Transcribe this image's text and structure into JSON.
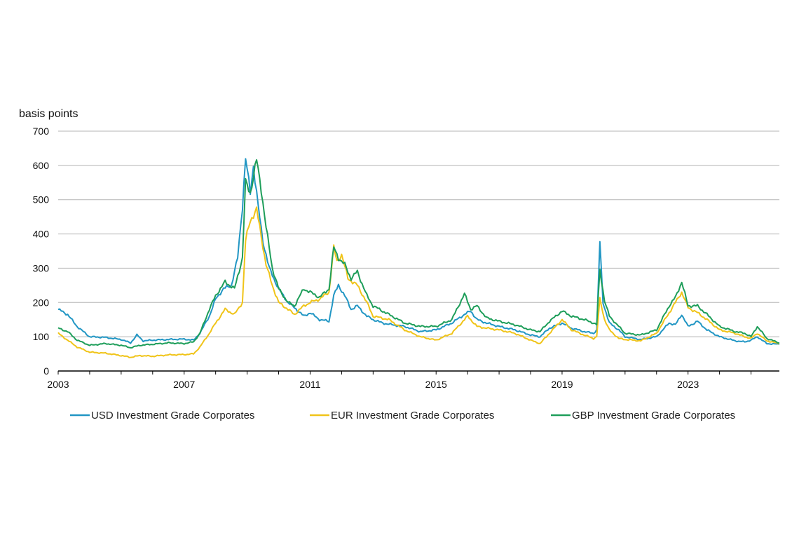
{
  "chart_data": {
    "type": "line",
    "title": "",
    "ylabel": "basis points",
    "xlabel": "",
    "ylim": [
      0,
      700
    ],
    "xlim": [
      2003,
      2025.9
    ],
    "y_ticks": [
      0,
      100,
      200,
      300,
      400,
      500,
      600,
      700
    ],
    "x_ticks": [
      2003,
      2007,
      2011,
      2015,
      2019,
      2023
    ],
    "grid": "horizontal",
    "legend_position": "bottom",
    "series": [
      {
        "name": "USD Investment Grade Corporates",
        "color": "#2196c4",
        "points": [
          [
            2003.0,
            180
          ],
          [
            2003.3,
            165
          ],
          [
            2003.6,
            130
          ],
          [
            2004.0,
            100
          ],
          [
            2004.5,
            98
          ],
          [
            2005.0,
            92
          ],
          [
            2005.3,
            82
          ],
          [
            2005.5,
            105
          ],
          [
            2005.7,
            88
          ],
          [
            2006.0,
            90
          ],
          [
            2006.5,
            92
          ],
          [
            2007.0,
            93
          ],
          [
            2007.3,
            90
          ],
          [
            2007.5,
            110
          ],
          [
            2007.8,
            160
          ],
          [
            2008.0,
            210
          ],
          [
            2008.25,
            240
          ],
          [
            2008.5,
            250
          ],
          [
            2008.7,
            330
          ],
          [
            2008.85,
            480
          ],
          [
            2008.95,
            620
          ],
          [
            2009.1,
            520
          ],
          [
            2009.2,
            600
          ],
          [
            2009.35,
            480
          ],
          [
            2009.5,
            380
          ],
          [
            2009.7,
            300
          ],
          [
            2010.0,
            240
          ],
          [
            2010.3,
            200
          ],
          [
            2010.5,
            185
          ],
          [
            2010.8,
            160
          ],
          [
            2011.0,
            170
          ],
          [
            2011.3,
            150
          ],
          [
            2011.6,
            145
          ],
          [
            2011.75,
            220
          ],
          [
            2011.9,
            250
          ],
          [
            2012.1,
            220
          ],
          [
            2012.3,
            180
          ],
          [
            2012.5,
            190
          ],
          [
            2012.8,
            160
          ],
          [
            2013.0,
            150
          ],
          [
            2013.3,
            140
          ],
          [
            2013.6,
            135
          ],
          [
            2014.0,
            130
          ],
          [
            2014.5,
            115
          ],
          [
            2015.0,
            120
          ],
          [
            2015.5,
            140
          ],
          [
            2015.9,
            165
          ],
          [
            2016.1,
            175
          ],
          [
            2016.3,
            150
          ],
          [
            2016.6,
            140
          ],
          [
            2017.0,
            130
          ],
          [
            2017.5,
            120
          ],
          [
            2018.0,
            105
          ],
          [
            2018.3,
            100
          ],
          [
            2018.6,
            125
          ],
          [
            2019.0,
            140
          ],
          [
            2019.3,
            125
          ],
          [
            2019.7,
            115
          ],
          [
            2020.0,
            110
          ],
          [
            2020.1,
            120
          ],
          [
            2020.2,
            375
          ],
          [
            2020.3,
            200
          ],
          [
            2020.5,
            140
          ],
          [
            2020.8,
            120
          ],
          [
            2021.0,
            100
          ],
          [
            2021.5,
            92
          ],
          [
            2022.0,
            100
          ],
          [
            2022.4,
            140
          ],
          [
            2022.6,
            135
          ],
          [
            2022.8,
            165
          ],
          [
            2023.0,
            130
          ],
          [
            2023.3,
            145
          ],
          [
            2023.6,
            120
          ],
          [
            2024.0,
            100
          ],
          [
            2024.5,
            88
          ],
          [
            2024.8,
            85
          ],
          [
            2025.0,
            90
          ],
          [
            2025.2,
            100
          ],
          [
            2025.5,
            80
          ],
          [
            2025.9,
            78
          ]
        ]
      },
      {
        "name": "EUR Investment Grade Corporates",
        "color": "#f0c419",
        "points": [
          [
            2003.0,
            110
          ],
          [
            2003.3,
            90
          ],
          [
            2003.6,
            70
          ],
          [
            2004.0,
            55
          ],
          [
            2004.5,
            52
          ],
          [
            2005.0,
            45
          ],
          [
            2005.3,
            40
          ],
          [
            2005.6,
            45
          ],
          [
            2006.0,
            43
          ],
          [
            2006.5,
            47
          ],
          [
            2007.0,
            48
          ],
          [
            2007.3,
            50
          ],
          [
            2007.5,
            70
          ],
          [
            2007.8,
            110
          ],
          [
            2008.0,
            140
          ],
          [
            2008.3,
            180
          ],
          [
            2008.6,
            165
          ],
          [
            2008.85,
            200
          ],
          [
            2008.95,
            380
          ],
          [
            2009.1,
            440
          ],
          [
            2009.3,
            470
          ],
          [
            2009.4,
            420
          ],
          [
            2009.6,
            310
          ],
          [
            2009.8,
            250
          ],
          [
            2010.0,
            200
          ],
          [
            2010.3,
            180
          ],
          [
            2010.5,
            165
          ],
          [
            2010.8,
            190
          ],
          [
            2011.0,
            200
          ],
          [
            2011.3,
            210
          ],
          [
            2011.6,
            230
          ],
          [
            2011.75,
            360
          ],
          [
            2011.85,
            320
          ],
          [
            2012.0,
            340
          ],
          [
            2012.2,
            270
          ],
          [
            2012.5,
            250
          ],
          [
            2012.8,
            200
          ],
          [
            2013.0,
            160
          ],
          [
            2013.5,
            150
          ],
          [
            2014.0,
            120
          ],
          [
            2014.5,
            100
          ],
          [
            2015.0,
            90
          ],
          [
            2015.5,
            110
          ],
          [
            2016.0,
            160
          ],
          [
            2016.3,
            130
          ],
          [
            2016.6,
            125
          ],
          [
            2017.0,
            120
          ],
          [
            2017.5,
            110
          ],
          [
            2018.0,
            90
          ],
          [
            2018.3,
            80
          ],
          [
            2018.6,
            110
          ],
          [
            2019.0,
            150
          ],
          [
            2019.3,
            120
          ],
          [
            2019.7,
            105
          ],
          [
            2020.0,
            95
          ],
          [
            2020.1,
            100
          ],
          [
            2020.2,
            210
          ],
          [
            2020.35,
            150
          ],
          [
            2020.5,
            120
          ],
          [
            2020.8,
            95
          ],
          [
            2021.0,
            92
          ],
          [
            2021.5,
            88
          ],
          [
            2022.0,
            110
          ],
          [
            2022.4,
            170
          ],
          [
            2022.6,
            200
          ],
          [
            2022.8,
            230
          ],
          [
            2023.0,
            185
          ],
          [
            2023.3,
            170
          ],
          [
            2023.6,
            150
          ],
          [
            2024.0,
            120
          ],
          [
            2024.5,
            110
          ],
          [
            2024.8,
            100
          ],
          [
            2025.0,
            95
          ],
          [
            2025.2,
            110
          ],
          [
            2025.5,
            88
          ],
          [
            2025.9,
            80
          ]
        ]
      },
      {
        "name": "GBP Investment Grade Corporates",
        "color": "#1e9e5a",
        "points": [
          [
            2003.0,
            125
          ],
          [
            2003.3,
            115
          ],
          [
            2003.6,
            90
          ],
          [
            2004.0,
            75
          ],
          [
            2004.5,
            80
          ],
          [
            2005.0,
            75
          ],
          [
            2005.3,
            68
          ],
          [
            2005.6,
            75
          ],
          [
            2006.0,
            78
          ],
          [
            2006.5,
            82
          ],
          [
            2007.0,
            80
          ],
          [
            2007.3,
            85
          ],
          [
            2007.5,
            110
          ],
          [
            2007.8,
            180
          ],
          [
            2008.0,
            220
          ],
          [
            2008.3,
            260
          ],
          [
            2008.6,
            240
          ],
          [
            2008.85,
            330
          ],
          [
            2008.95,
            550
          ],
          [
            2009.1,
            520
          ],
          [
            2009.3,
            615
          ],
          [
            2009.45,
            530
          ],
          [
            2009.6,
            420
          ],
          [
            2009.8,
            300
          ],
          [
            2010.0,
            240
          ],
          [
            2010.3,
            200
          ],
          [
            2010.5,
            190
          ],
          [
            2010.8,
            240
          ],
          [
            2011.0,
            230
          ],
          [
            2011.3,
            215
          ],
          [
            2011.6,
            240
          ],
          [
            2011.75,
            360
          ],
          [
            2011.9,
            330
          ],
          [
            2012.1,
            310
          ],
          [
            2012.3,
            270
          ],
          [
            2012.5,
            290
          ],
          [
            2012.8,
            220
          ],
          [
            2013.0,
            190
          ],
          [
            2013.5,
            165
          ],
          [
            2014.0,
            140
          ],
          [
            2014.5,
            130
          ],
          [
            2015.0,
            130
          ],
          [
            2015.5,
            150
          ],
          [
            2015.9,
            225
          ],
          [
            2016.1,
            180
          ],
          [
            2016.3,
            190
          ],
          [
            2016.6,
            155
          ],
          [
            2017.0,
            145
          ],
          [
            2017.5,
            135
          ],
          [
            2018.0,
            120
          ],
          [
            2018.3,
            115
          ],
          [
            2018.6,
            145
          ],
          [
            2019.0,
            175
          ],
          [
            2019.3,
            160
          ],
          [
            2019.7,
            150
          ],
          [
            2020.0,
            140
          ],
          [
            2020.1,
            135
          ],
          [
            2020.2,
            295
          ],
          [
            2020.35,
            205
          ],
          [
            2020.5,
            160
          ],
          [
            2020.8,
            130
          ],
          [
            2021.0,
            110
          ],
          [
            2021.5,
            105
          ],
          [
            2022.0,
            120
          ],
          [
            2022.4,
            190
          ],
          [
            2022.6,
            215
          ],
          [
            2022.8,
            260
          ],
          [
            2023.0,
            190
          ],
          [
            2023.3,
            190
          ],
          [
            2023.6,
            165
          ],
          [
            2024.0,
            130
          ],
          [
            2024.5,
            115
          ],
          [
            2024.8,
            110
          ],
          [
            2025.0,
            100
          ],
          [
            2025.2,
            130
          ],
          [
            2025.5,
            95
          ],
          [
            2025.9,
            82
          ]
        ]
      }
    ]
  }
}
